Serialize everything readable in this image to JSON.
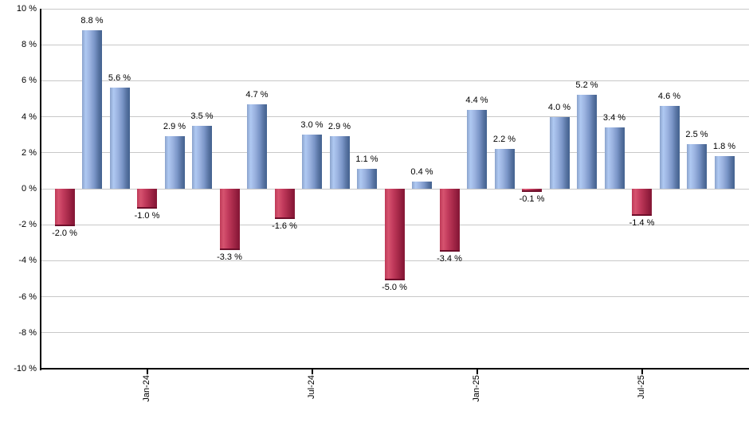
{
  "chart_data": {
    "type": "bar",
    "title": "",
    "xlabel": "",
    "ylabel": "",
    "ylim": [
      -10,
      10
    ],
    "grid": true,
    "legend": false,
    "y_ticks": [
      {
        "value": 10,
        "label": "10 %"
      },
      {
        "value": 8,
        "label": "8 %"
      },
      {
        "value": 6,
        "label": "6 %"
      },
      {
        "value": 4,
        "label": "4 %"
      },
      {
        "value": 2,
        "label": "2 %"
      },
      {
        "value": 0,
        "label": "0 %"
      },
      {
        "value": -2,
        "label": "-2 %"
      },
      {
        "value": -4,
        "label": "-4 %"
      },
      {
        "value": -6,
        "label": "-6 %"
      },
      {
        "value": -8,
        "label": "-8 %"
      },
      {
        "value": -10,
        "label": "-10 %"
      }
    ],
    "x_ticks": [
      {
        "label": "Jan-24",
        "bar_index": 3
      },
      {
        "label": "Jul-24",
        "bar_index": 9
      },
      {
        "label": "Jan-25",
        "bar_index": 15
      },
      {
        "label": "Jul-25",
        "bar_index": 21
      }
    ],
    "values": [
      -2.0,
      8.8,
      5.6,
      -1.0,
      2.9,
      3.5,
      -3.3,
      4.7,
      -1.6,
      3.0,
      2.9,
      1.1,
      -5.0,
      0.4,
      -3.4,
      4.4,
      2.2,
      -0.1,
      4.0,
      5.2,
      3.4,
      -1.4,
      4.6,
      2.5,
      1.8
    ],
    "bar_labels": [
      "-2.0 %",
      "8.8 %",
      "5.6 %",
      "-1.0 %",
      "2.9 %",
      "3.5 %",
      "-3.3 %",
      "4.7 %",
      "-1.6 %",
      "3.0 %",
      "2.9 %",
      "1.1 %",
      "-5.0 %",
      "0.4 %",
      "-3.4 %",
      "4.4 %",
      "2.2 %",
      "-0.1 %",
      "4.0 %",
      "5.2 %",
      "3.4 %",
      "-1.4 %",
      "4.6 %",
      "2.5 %",
      "1.8 %"
    ],
    "colors": {
      "positive_light": "#afc9f2",
      "positive_dark": "#42618f",
      "negative_light": "#d6536f",
      "negative_dark": "#851735",
      "negative_cap": "#6e0f2b",
      "gridline": "#c8c8c8",
      "axis": "#000000",
      "label_text": "#000000",
      "background": "#ffffff"
    }
  }
}
